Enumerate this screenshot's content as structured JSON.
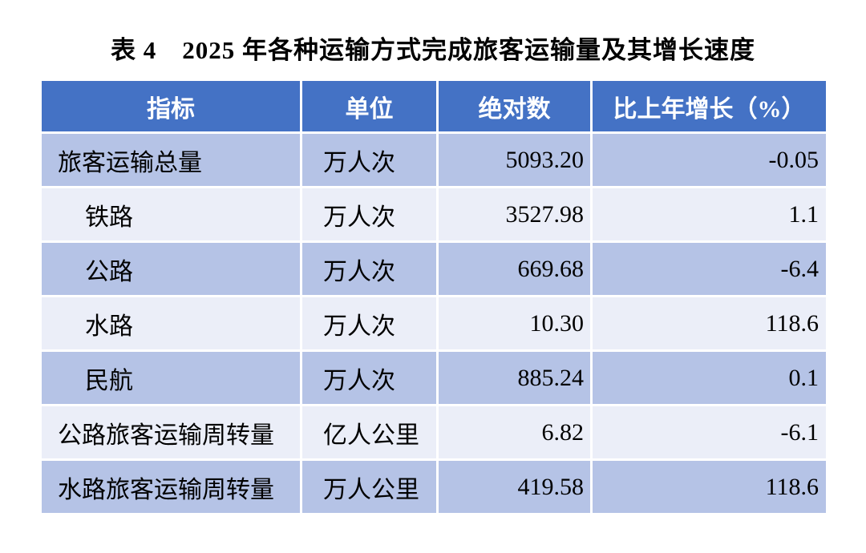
{
  "title": "表 4　2025 年各种运输方式完成旅客运输量及其增长速度",
  "colors": {
    "background": "#ffffff",
    "header_bg": "#4472c5",
    "header_text": "#ffffff",
    "row_odd": "#b5c3e6",
    "row_even": "#ebeef8",
    "text": "#000000"
  },
  "chart_data": {
    "type": "table",
    "title": "表 4　2025 年各种运输方式完成旅客运输量及其增长速度",
    "columns": [
      "指标",
      "单位",
      "绝对数",
      "比上年增长（%）"
    ],
    "rows": [
      [
        "旅客运输总量",
        "万人次",
        "5093.20",
        "-0.05"
      ],
      [
        "铁路",
        "万人次",
        "3527.98",
        "1.1"
      ],
      [
        "公路",
        "万人次",
        "669.68",
        "-6.4"
      ],
      [
        "水路",
        "万人次",
        "10.30",
        "118.6"
      ],
      [
        "民航",
        "万人次",
        "885.24",
        "0.1"
      ],
      [
        "公路旅客运输周转量",
        "亿人公里",
        "6.82",
        "-6.1"
      ],
      [
        "水路旅客运输周转量",
        "万人公里",
        "419.58",
        "118.6"
      ]
    ],
    "layout_hints": {
      "indented_rows": [
        1,
        2,
        3,
        4
      ],
      "value_columns_alignment": "right",
      "striped": true
    }
  }
}
